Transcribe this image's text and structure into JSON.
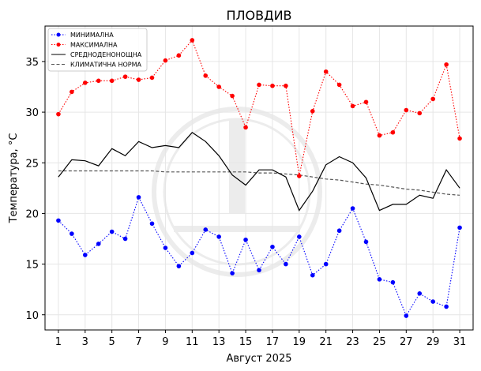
{
  "chart_data": {
    "type": "line",
    "title": "ПЛОВДИВ",
    "xlabel": "Август  2025",
    "ylabel": "Температура,  °C",
    "xlim": [
      0,
      32
    ],
    "ylim": [
      8.5,
      38.5
    ],
    "xticks": [
      1,
      3,
      5,
      7,
      9,
      11,
      13,
      15,
      17,
      19,
      21,
      23,
      25,
      27,
      29,
      31
    ],
    "yticks": [
      10,
      15,
      20,
      25,
      30,
      35
    ],
    "grid": true,
    "legend_position": "top-left",
    "x": [
      1,
      2,
      3,
      4,
      5,
      6,
      7,
      8,
      9,
      10,
      11,
      12,
      13,
      14,
      15,
      16,
      17,
      18,
      19,
      20,
      21,
      22,
      23,
      24,
      25,
      26,
      27,
      28,
      29,
      30,
      31
    ],
    "series": [
      {
        "name": "МИНИМАЛНА",
        "color": "#0000ff",
        "style": "dotted-markers",
        "values": [
          19.3,
          18.0,
          15.9,
          17.0,
          18.2,
          17.5,
          21.6,
          19.0,
          16.6,
          14.8,
          16.1,
          18.4,
          17.7,
          14.1,
          17.4,
          14.4,
          16.7,
          15.0,
          17.7,
          13.9,
          15.0,
          18.3,
          20.5,
          17.2,
          13.5,
          13.2,
          9.9,
          12.1,
          11.3,
          10.8,
          18.6
        ]
      },
      {
        "name": "МАКСИМАЛНА",
        "color": "#ff0000",
        "style": "dotted-markers",
        "values": [
          29.8,
          32.0,
          32.9,
          33.1,
          33.1,
          33.5,
          33.2,
          33.4,
          35.1,
          35.6,
          37.1,
          33.6,
          32.5,
          31.6,
          28.5,
          32.7,
          32.6,
          32.6,
          23.7,
          30.1,
          34.0,
          32.7,
          30.6,
          31.0,
          27.7,
          28.0,
          30.2,
          29.9,
          31.3,
          34.7,
          27.4
        ]
      },
      {
        "name": "СРЕДНОДЕНОНОЩНА",
        "color": "#000000",
        "style": "solid",
        "values": [
          23.6,
          25.3,
          25.2,
          24.7,
          26.4,
          25.7,
          27.1,
          26.5,
          26.7,
          26.5,
          28.0,
          27.1,
          25.7,
          23.8,
          22.8,
          24.3,
          24.3,
          23.6,
          20.3,
          22.2,
          24.8,
          25.6,
          25.0,
          23.5,
          20.3,
          20.9,
          20.9,
          21.8,
          21.5,
          24.3,
          22.5
        ]
      },
      {
        "name": "КЛИМАТИЧНА НОРМА",
        "color": "#555555",
        "style": "dashed",
        "values": [
          24.2,
          24.2,
          24.2,
          24.2,
          24.2,
          24.2,
          24.2,
          24.2,
          24.1,
          24.1,
          24.1,
          24.1,
          24.1,
          24.1,
          24.1,
          24.0,
          24.0,
          23.9,
          23.8,
          23.6,
          23.4,
          23.3,
          23.1,
          22.9,
          22.8,
          22.6,
          22.4,
          22.3,
          22.1,
          21.9,
          21.8
        ]
      }
    ]
  }
}
